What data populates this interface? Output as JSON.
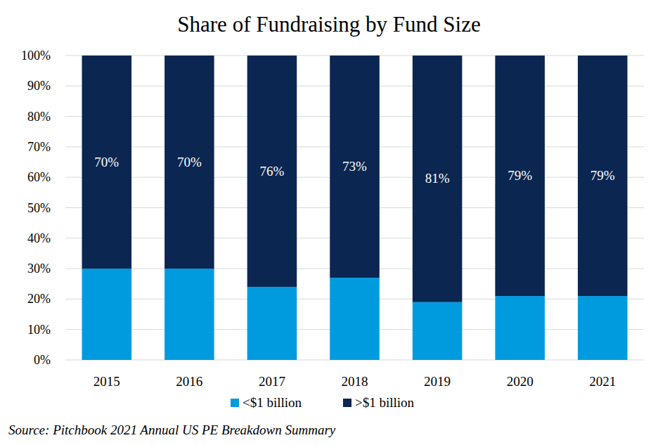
{
  "chart_data": {
    "type": "bar",
    "title": "Share of Fundraising by Fund Size",
    "stacked": true,
    "categories": [
      "2015",
      "2016",
      "2017",
      "2018",
      "2019",
      "2020",
      "2021"
    ],
    "series": [
      {
        "name": "<$1 billion",
        "color": "#009bdf",
        "values": [
          30,
          30,
          24,
          27,
          19,
          21,
          21
        ]
      },
      {
        "name": ">$1 billion",
        "color": "#0b2650",
        "values": [
          70,
          70,
          76,
          73,
          81,
          79,
          79
        ],
        "data_labels": true,
        "value_labels": [
          "70%",
          "70%",
          "76%",
          "73%",
          "81%",
          "79%",
          "79%"
        ]
      }
    ],
    "ylim": [
      0,
      100
    ],
    "yticks": [
      {
        "value": 0,
        "label": "0%"
      },
      {
        "value": 10,
        "label": "10%"
      },
      {
        "value": 20,
        "label": "20%"
      },
      {
        "value": 30,
        "label": "30%"
      },
      {
        "value": 40,
        "label": "40%"
      },
      {
        "value": 50,
        "label": "50%"
      },
      {
        "value": 60,
        "label": "60%"
      },
      {
        "value": 70,
        "label": "70%"
      },
      {
        "value": 80,
        "label": "80%"
      },
      {
        "value": 90,
        "label": "90%"
      },
      {
        "value": 100,
        "label": "100%"
      }
    ],
    "grid": true,
    "legend": "bottom",
    "source": "Source: Pitchbook 2021 Annual US PE Breakdown Summary"
  }
}
